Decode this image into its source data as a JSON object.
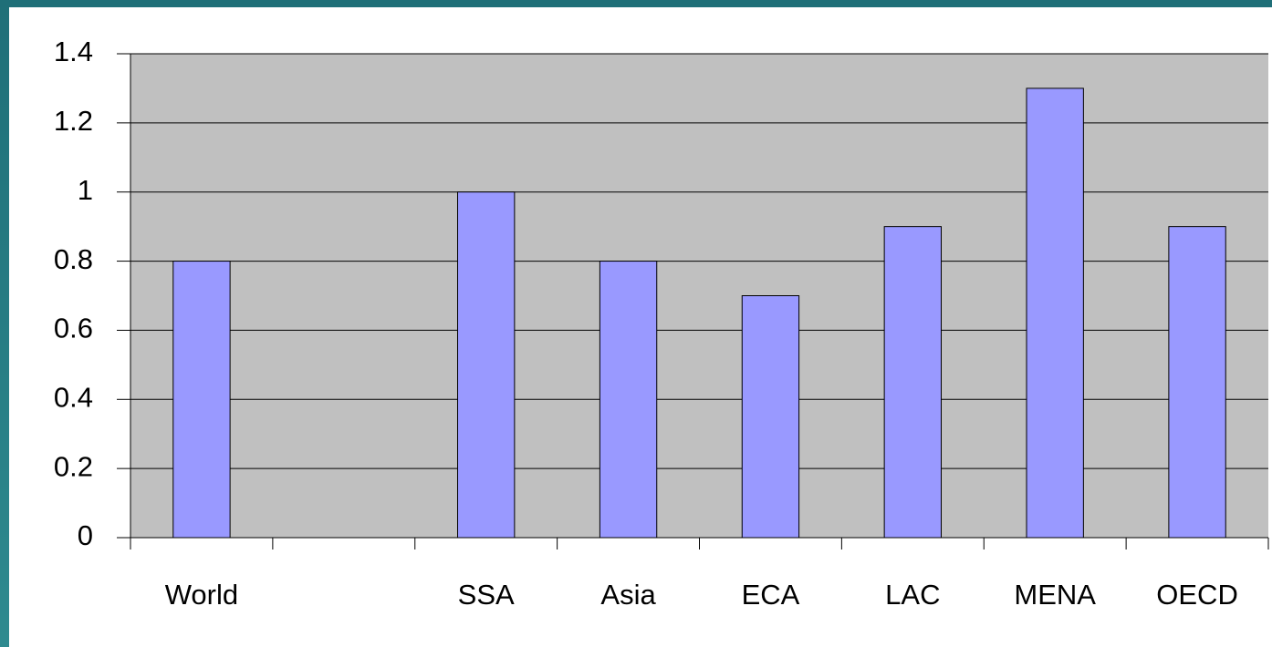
{
  "chart_data": {
    "type": "bar",
    "categories": [
      "World",
      null,
      "SSA",
      "Asia",
      "ECA",
      "LAC",
      "MENA",
      "OECD"
    ],
    "values": [
      0.8,
      null,
      1.0,
      0.8,
      0.7,
      0.9,
      1.3,
      0.9
    ],
    "color": "#9999ff",
    "ylim": [
      0,
      1.4
    ],
    "yticks": [
      0,
      0.2,
      0.4,
      0.6,
      0.8,
      1,
      1.2,
      1.4
    ],
    "grid": true
  }
}
